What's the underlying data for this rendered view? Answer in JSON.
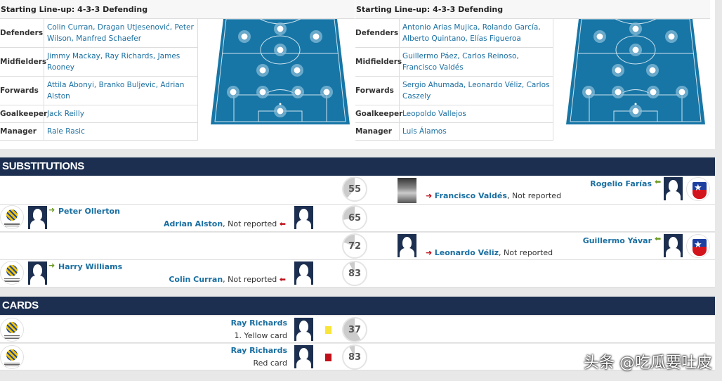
{
  "lineups": [
    {
      "title": "Starting Line-up: 4-3-3 Defending",
      "rows": [
        {
          "label": "Defenders",
          "value": "Colin Curran, Dragan Utjesenović, Peter Wilson, Manfred Schaefer"
        },
        {
          "label": "Midfielders",
          "value": "Jimmy Mackay, Ray Richards, James Rooney"
        },
        {
          "label": "Forwards",
          "value": "Attila Abonyi, Branko Buljevic, Adrian Alston"
        },
        {
          "label": "Goalkeeper",
          "value": "Jack Reilly"
        },
        {
          "label": "Manager",
          "value": "Rale Rasic"
        }
      ]
    },
    {
      "title": "Starting Line-up: 4-3-3 Defending",
      "rows": [
        {
          "label": "Defenders",
          "value": "Antonio Arias Mujica, Rolando García, Alberto Quintano, Elías Figueroa"
        },
        {
          "label": "Midfielders",
          "value": "Guillermo Páez, Carlos Reinoso, Francisco Valdés"
        },
        {
          "label": "Forwards",
          "value": "Sergio Ahumada, Leonardo Véliz, Carlos Caszely"
        },
        {
          "label": "Goalkeeper",
          "value": "Leopoldo Vallejos"
        },
        {
          "label": "Manager",
          "value": "Luis Álamos"
        }
      ]
    }
  ],
  "substitutions": {
    "title": "SUBSTITUTIONS",
    "rows": [
      {
        "minute": "55",
        "side": "away",
        "in": "Rogelio Farías",
        "out": "Francisco Valdés",
        "reason": ", Not reported",
        "out_photo": true
      },
      {
        "minute": "65",
        "side": "home",
        "in": "Peter Ollerton",
        "out": "Adrian Alston",
        "reason": ", Not reported"
      },
      {
        "minute": "72",
        "side": "away",
        "in": "Guillermo Yávar",
        "out": "Leonardo Véliz",
        "reason": ", Not reported"
      },
      {
        "minute": "83",
        "side": "home",
        "in": "Harry Williams",
        "out": "Colin Curran",
        "reason": ", Not reported"
      }
    ]
  },
  "cards": {
    "title": "CARDS",
    "rows": [
      {
        "minute": "37",
        "player": "Ray Richards",
        "type": "1. Yellow card",
        "color": "#f9e53a"
      },
      {
        "minute": "83",
        "player": "Ray Richards",
        "type": "Red card",
        "color": "#c0101a"
      }
    ]
  },
  "colors": {
    "header": "#1c2f50",
    "link": "#1a6fa1",
    "pitch": "#1776a6",
    "sub_in": "#6a9a1f",
    "sub_out": "#c0101a"
  },
  "icons": {
    "sub_in": "arrow-right-green",
    "sub_out": "arrow-red",
    "home_logo": "football-federation-australia-logo",
    "away_logo": "chile-shield-logo"
  },
  "watermark": "头条 @吃瓜要吐皮"
}
